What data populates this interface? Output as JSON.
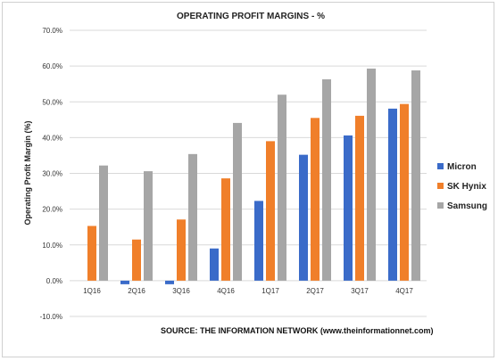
{
  "chart_data": {
    "type": "bar",
    "title": "OPERATING PROFIT MARGINS - %",
    "ylabel": "Operating Profit Margin (%)",
    "xlabel": "",
    "ylim": [
      -10,
      70
    ],
    "yticks": [
      "-10.0%",
      "0.0%",
      "10.0%",
      "20.0%",
      "30.0%",
      "40.0%",
      "50.0%",
      "60.0%",
      "70.0%"
    ],
    "ytick_values": [
      -10,
      0,
      10,
      20,
      30,
      40,
      50,
      60,
      70
    ],
    "categories": [
      "1Q16",
      "2Q16",
      "3Q16",
      "4Q16",
      "1Q17",
      "2Q17",
      "3Q17",
      "4Q17"
    ],
    "series": [
      {
        "name": "Micron",
        "color": "#3a6bc9",
        "values": [
          0,
          -1,
          -1,
          9,
          22.3,
          35.2,
          40.6,
          48.1
        ]
      },
      {
        "name": "SK Hynix",
        "color": "#f07f2a",
        "values": [
          15.3,
          11.5,
          17.1,
          28.6,
          39,
          45.5,
          46.1,
          49.4
        ]
      },
      {
        "name": "Samsung",
        "color": "#a6a6a6",
        "values": [
          32.2,
          30.6,
          35.4,
          44.1,
          52,
          56.3,
          59.3,
          58.8
        ]
      }
    ],
    "grid": true,
    "legend_position": "right",
    "source": "SOURCE: THE INFORMATION NETWORK (www.theinformationnet.com)"
  }
}
